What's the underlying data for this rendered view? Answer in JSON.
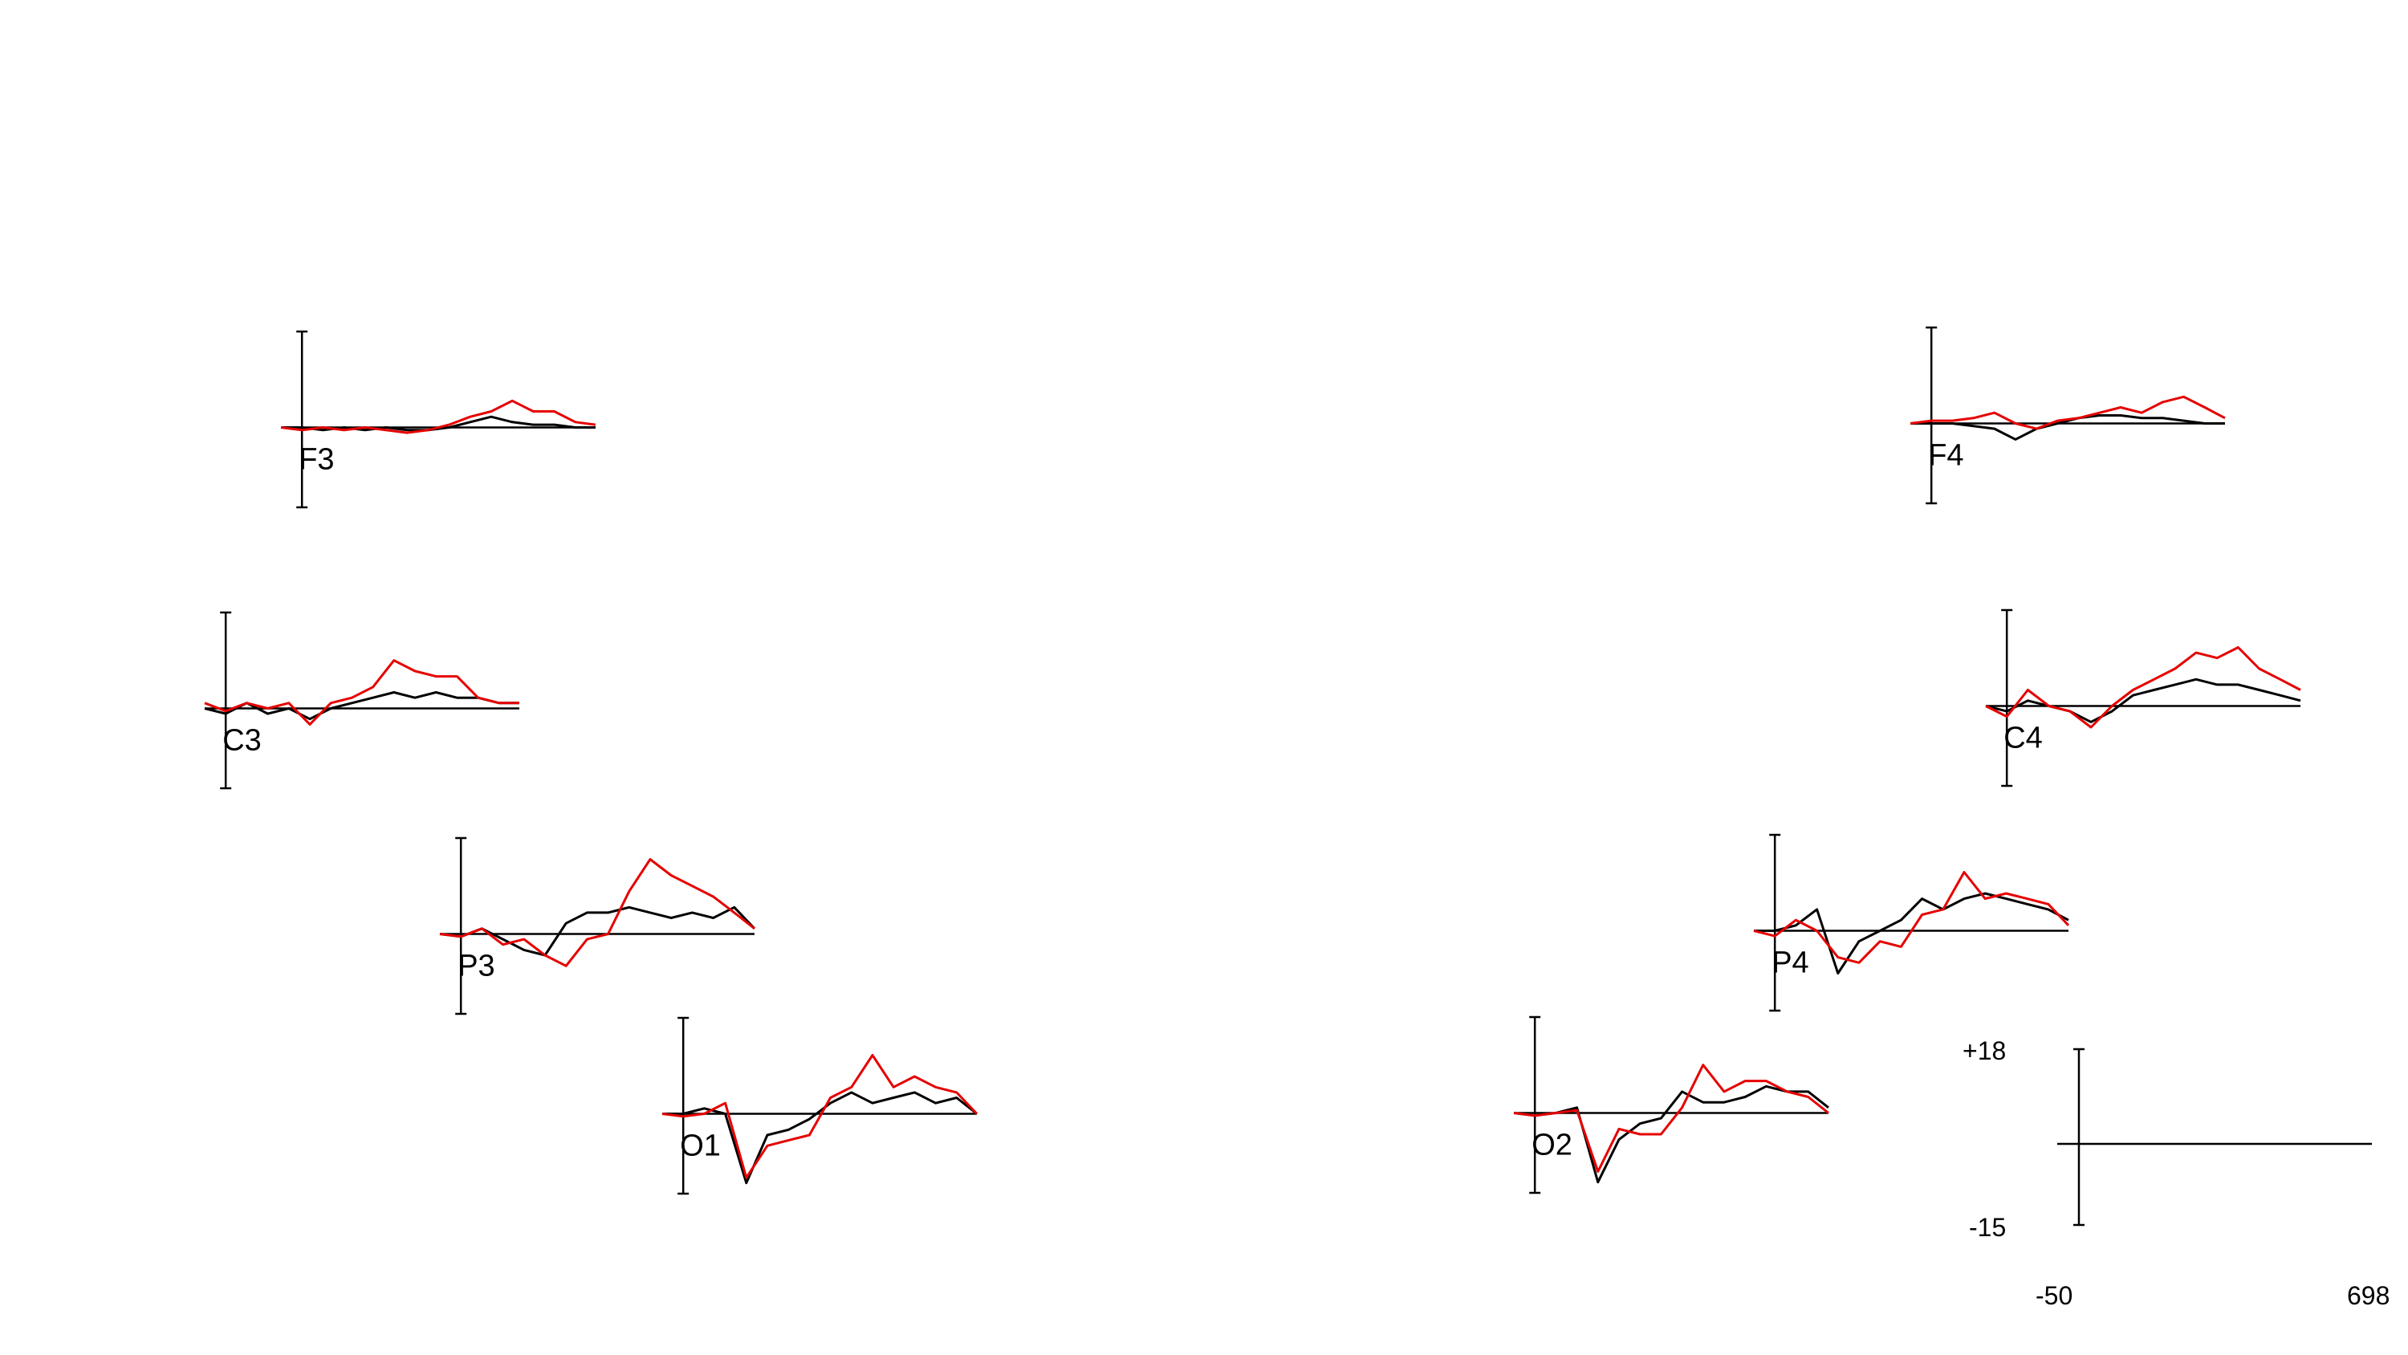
{
  "colors": {
    "background": "#ffffff",
    "axis": "#000000",
    "series_black": "#000000",
    "series_red": "#e60000"
  },
  "chart_data": {
    "type": "line",
    "x_range": [
      -50,
      698
    ],
    "y_range": [
      -15,
      18
    ],
    "scale_legend": {
      "y_max_label": "+18",
      "y_min_label": "-15",
      "x_min_label": "-50",
      "x_max_label": "698"
    },
    "channels": [
      {
        "label": "F3",
        "series": [
          {
            "color": "black",
            "x": [
              -50,
              0,
              50,
              100,
              150,
              200,
              250,
              300,
              350,
              400,
              450,
              500,
              550,
              600,
              650,
              698
            ],
            "y": [
              0,
              0,
              -0.5,
              0,
              -0.5,
              0,
              -0.5,
              -0.5,
              0,
              1,
              2,
              1,
              0.5,
              0.5,
              0,
              0
            ]
          },
          {
            "color": "red",
            "x": [
              -50,
              0,
              50,
              100,
              150,
              200,
              250,
              300,
              350,
              400,
              450,
              500,
              550,
              600,
              650,
              698
            ],
            "y": [
              0,
              -0.5,
              0,
              -0.5,
              0,
              -0.5,
              -1,
              -0.5,
              0.5,
              2,
              3,
              5,
              3,
              3,
              1,
              0.5
            ]
          }
        ]
      },
      {
        "label": "F4",
        "series": [
          {
            "color": "black",
            "x": [
              -50,
              0,
              50,
              100,
              150,
              200,
              250,
              300,
              350,
              400,
              450,
              500,
              550,
              600,
              650,
              698
            ],
            "y": [
              0,
              0,
              0,
              -0.5,
              -1,
              -3,
              -1,
              0,
              1,
              1.5,
              1.5,
              1,
              1,
              0.5,
              0,
              0
            ]
          },
          {
            "color": "red",
            "x": [
              -50,
              0,
              50,
              100,
              150,
              200,
              250,
              300,
              350,
              400,
              450,
              500,
              550,
              600,
              650,
              698
            ],
            "y": [
              0,
              0.5,
              0.5,
              1,
              2,
              0,
              -1,
              0.5,
              1,
              2,
              3,
              2,
              4,
              5,
              3,
              1
            ]
          }
        ]
      },
      {
        "label": "C3",
        "series": [
          {
            "color": "black",
            "x": [
              -50,
              0,
              50,
              100,
              150,
              200,
              250,
              300,
              350,
              400,
              450,
              500,
              550,
              600,
              650,
              698
            ],
            "y": [
              0,
              -1,
              1,
              -1,
              0,
              -2,
              0,
              1,
              2,
              3,
              2,
              3,
              2,
              2,
              1,
              1
            ]
          },
          {
            "color": "red",
            "x": [
              -50,
              0,
              50,
              100,
              150,
              200,
              250,
              300,
              350,
              400,
              450,
              500,
              550,
              600,
              650,
              698
            ],
            "y": [
              1,
              -0.5,
              1,
              0,
              1,
              -3,
              1,
              2,
              4,
              9,
              7,
              6,
              6,
              2,
              1,
              1
            ]
          }
        ]
      },
      {
        "label": "C4",
        "series": [
          {
            "color": "black",
            "x": [
              -50,
              0,
              50,
              100,
              150,
              200,
              250,
              300,
              350,
              400,
              450,
              500,
              550,
              600,
              650,
              698
            ],
            "y": [
              0,
              -1,
              1,
              0,
              -1,
              -3,
              -1,
              2,
              3,
              4,
              5,
              4,
              4,
              3,
              2,
              1
            ]
          },
          {
            "color": "red",
            "x": [
              -50,
              0,
              50,
              100,
              150,
              200,
              250,
              300,
              350,
              400,
              450,
              500,
              550,
              600,
              650,
              698
            ],
            "y": [
              0,
              -2,
              3,
              0,
              -1,
              -4,
              0,
              3,
              5,
              7,
              10,
              9,
              11,
              7,
              5,
              3
            ]
          }
        ]
      },
      {
        "label": "P3",
        "series": [
          {
            "color": "black",
            "x": [
              -50,
              0,
              50,
              100,
              150,
              200,
              250,
              300,
              350,
              400,
              450,
              500,
              550,
              600,
              650,
              698
            ],
            "y": [
              0,
              -0.5,
              1,
              -1,
              -3,
              -4,
              2,
              4,
              4,
              5,
              4,
              3,
              4,
              3,
              5,
              1
            ]
          },
          {
            "color": "red",
            "x": [
              -50,
              0,
              50,
              100,
              150,
              200,
              250,
              300,
              350,
              400,
              450,
              500,
              550,
              600,
              650,
              698
            ],
            "y": [
              0,
              -0.5,
              1,
              -2,
              -1,
              -4,
              -6,
              -1,
              0,
              8,
              14,
              11,
              9,
              7,
              4,
              1
            ]
          }
        ]
      },
      {
        "label": "P4",
        "series": [
          {
            "color": "black",
            "x": [
              -50,
              0,
              50,
              100,
              150,
              200,
              250,
              300,
              350,
              400,
              450,
              500,
              550,
              600,
              650,
              698
            ],
            "y": [
              0,
              0,
              1,
              4,
              -8,
              -2,
              0,
              2,
              6,
              4,
              6,
              7,
              6,
              5,
              4,
              2
            ]
          },
          {
            "color": "red",
            "x": [
              -50,
              0,
              50,
              100,
              150,
              200,
              250,
              300,
              350,
              400,
              450,
              500,
              550,
              600,
              650,
              698
            ],
            "y": [
              0,
              -1,
              2,
              0,
              -5,
              -6,
              -2,
              -3,
              3,
              4,
              11,
              6,
              7,
              6,
              5,
              1
            ]
          }
        ]
      },
      {
        "label": "O1",
        "series": [
          {
            "color": "black",
            "x": [
              -50,
              0,
              50,
              100,
              150,
              200,
              250,
              300,
              350,
              400,
              450,
              500,
              550,
              600,
              650,
              698
            ],
            "y": [
              0,
              0,
              1,
              0,
              -13,
              -4,
              -3,
              -1,
              2,
              4,
              2,
              3,
              4,
              2,
              3,
              0
            ]
          },
          {
            "color": "red",
            "x": [
              -50,
              0,
              50,
              100,
              150,
              200,
              250,
              300,
              350,
              400,
              450,
              500,
              550,
              600,
              650,
              698
            ],
            "y": [
              0,
              -0.5,
              0,
              2,
              -12,
              -6,
              -5,
              -4,
              3,
              5,
              11,
              5,
              7,
              5,
              4,
              0
            ]
          }
        ]
      },
      {
        "label": "O2",
        "series": [
          {
            "color": "black",
            "x": [
              -50,
              0,
              50,
              100,
              150,
              200,
              250,
              300,
              350,
              400,
              450,
              500,
              550,
              600,
              650,
              698
            ],
            "y": [
              0,
              -0.5,
              0,
              1,
              -13,
              -5,
              -2,
              -1,
              4,
              2,
              2,
              3,
              5,
              4,
              4,
              1
            ]
          },
          {
            "color": "red",
            "x": [
              -50,
              0,
              50,
              100,
              150,
              200,
              250,
              300,
              350,
              400,
              450,
              500,
              550,
              600,
              650,
              698
            ],
            "y": [
              0,
              -0.5,
              0,
              0.5,
              -11,
              -3,
              -4,
              -4,
              1,
              9,
              4,
              6,
              6,
              4,
              3,
              0
            ]
          }
        ]
      }
    ]
  }
}
